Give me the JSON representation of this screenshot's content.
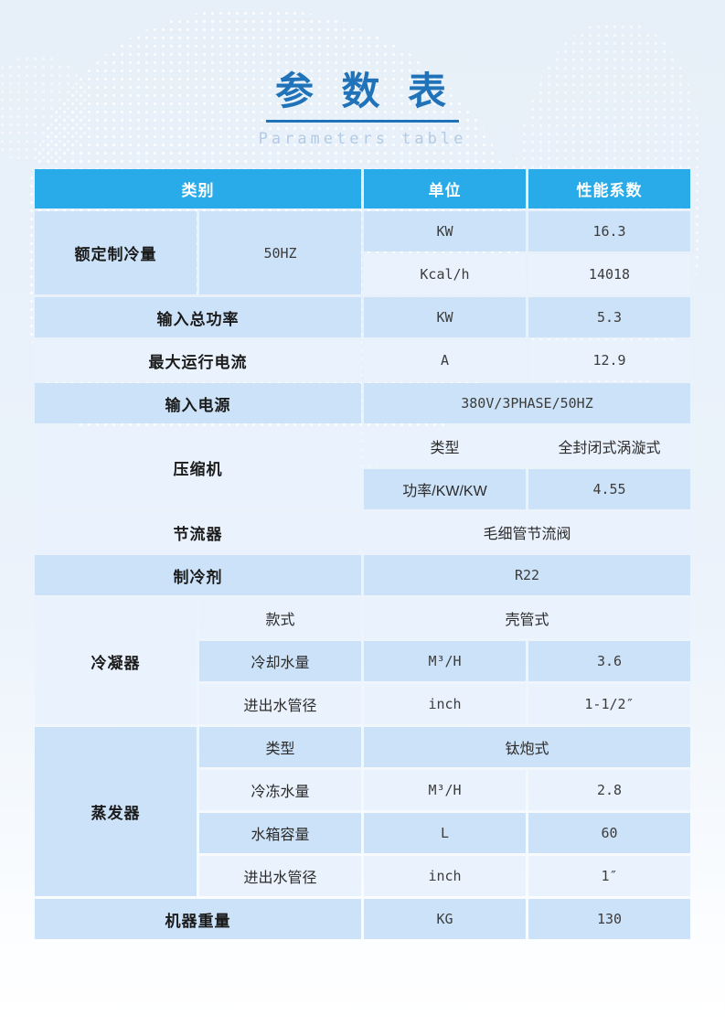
{
  "page": {
    "title": "参 数 表",
    "subtitle": "Parameters table"
  },
  "colors": {
    "header_bg": "#29abe9",
    "row_dark": "#cce2f8",
    "row_light": "#e9f2fd",
    "title_color": "#2173b9",
    "underline_color": "#2173b9",
    "subtitle_color": "#b3cbe4"
  },
  "table": {
    "header": {
      "category": "类别",
      "unit": "单位",
      "coefficient": "性能系数"
    },
    "cells": {
      "rated_cooling_label": "额定制冷量",
      "rated_cooling_freq": "50HZ",
      "rated_cooling_kw_unit": "KW",
      "rated_cooling_kw_value": "16.3",
      "rated_cooling_kcal_unit": "Kcal/h",
      "rated_cooling_kcal_value": "14018",
      "input_power_label": "输入总功率",
      "input_power_unit": "KW",
      "input_power_value": "5.3",
      "max_current_label": "最大运行电流",
      "max_current_unit": "A",
      "max_current_value": "12.9",
      "power_supply_label": "输入电源",
      "power_supply_value": "380V/3PHASE/50HZ",
      "compressor_label": "压缩机",
      "compressor_type_label": "类型",
      "compressor_type_value": "全封闭式涡漩式",
      "compressor_power_label": "功率/KW/KW",
      "compressor_power_value": "4.55",
      "throttle_label": "节流器",
      "throttle_value": "毛细管节流阀",
      "refrigerant_label": "制冷剂",
      "refrigerant_value": "R22",
      "condenser_label": "冷凝器",
      "condenser_style_label": "款式",
      "condenser_style_value": "壳管式",
      "condenser_water_label": "冷却水量",
      "condenser_water_unit": "M³/H",
      "condenser_water_value": "3.6",
      "condenser_pipe_label": "进出水管径",
      "condenser_pipe_unit": "inch",
      "condenser_pipe_value": "1-1/2″",
      "evaporator_label": "蒸发器",
      "evaporator_type_label": "类型",
      "evaporator_type_value": "钛炮式",
      "evaporator_water_label": "冷冻水量",
      "evaporator_water_unit": "M³/H",
      "evaporator_water_value": "2.8",
      "evaporator_tank_label": "水箱容量",
      "evaporator_tank_unit": "L",
      "evaporator_tank_value": "60",
      "evaporator_pipe_label": "进出水管径",
      "evaporator_pipe_unit": "inch",
      "evaporator_pipe_value": "1″",
      "weight_label": "机器重量",
      "weight_unit": "KG",
      "weight_value": "130"
    }
  }
}
